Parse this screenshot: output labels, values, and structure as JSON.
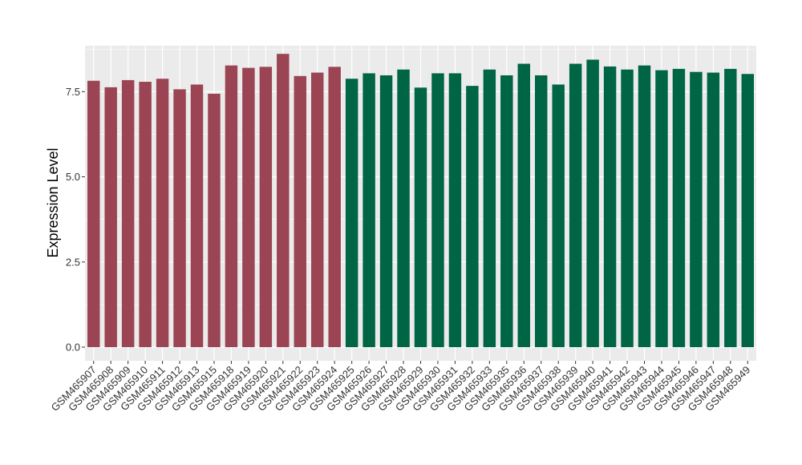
{
  "chart_data": {
    "type": "bar",
    "ylabel": "Expression Level",
    "xlabel": "",
    "title": "",
    "ylim": [
      -0.4,
      8.85
    ],
    "yticks": [
      0.0,
      2.5,
      5.0,
      7.5
    ],
    "ytick_labels": [
      "0.0",
      "2.5",
      "5.0",
      "7.5"
    ],
    "grid": true,
    "legend": "none",
    "panel_color": "#EBEBEB",
    "gridline_color": "#FFFFFF",
    "categories": [
      "GSM465907",
      "GSM465908",
      "GSM465909",
      "GSM465910",
      "GSM465911",
      "GSM465912",
      "GSM465913",
      "GSM465915",
      "GSM465918",
      "GSM465919",
      "GSM465920",
      "GSM465921",
      "GSM465922",
      "GSM465923",
      "GSM465924",
      "GSM465925",
      "GSM465926",
      "GSM465927",
      "GSM465928",
      "GSM465929",
      "GSM465930",
      "GSM465931",
      "GSM465932",
      "GSM465933",
      "GSM465935",
      "GSM465936",
      "GSM465937",
      "GSM465938",
      "GSM465939",
      "GSM465940",
      "GSM465941",
      "GSM465942",
      "GSM465943",
      "GSM465944",
      "GSM465945",
      "GSM465946",
      "GSM465947",
      "GSM465948",
      "GSM465949"
    ],
    "values": [
      7.82,
      7.63,
      7.84,
      7.79,
      7.88,
      7.57,
      7.71,
      7.44,
      8.27,
      8.2,
      8.23,
      8.61,
      7.96,
      8.06,
      8.23,
      7.88,
      8.04,
      7.98,
      8.15,
      7.62,
      8.04,
      8.04,
      7.67,
      8.15,
      7.98,
      8.32,
      7.98,
      7.71,
      8.32,
      8.44,
      8.24,
      8.15,
      8.27,
      8.13,
      8.17,
      8.08,
      8.06,
      8.17,
      8.02
    ],
    "bar_colors": [
      "#9B4453",
      "#9B4453",
      "#9B4453",
      "#9B4453",
      "#9B4453",
      "#9B4453",
      "#9B4453",
      "#9B4453",
      "#9B4453",
      "#9B4453",
      "#9B4453",
      "#9B4453",
      "#9B4453",
      "#9B4453",
      "#9B4453",
      "#006544",
      "#006544",
      "#006544",
      "#006544",
      "#006544",
      "#006544",
      "#006544",
      "#006544",
      "#006544",
      "#006544",
      "#006544",
      "#006544",
      "#006544",
      "#006544",
      "#006544",
      "#006544",
      "#006544",
      "#006544",
      "#006544",
      "#006544",
      "#006544",
      "#006544",
      "#006544",
      "#006544"
    ]
  }
}
